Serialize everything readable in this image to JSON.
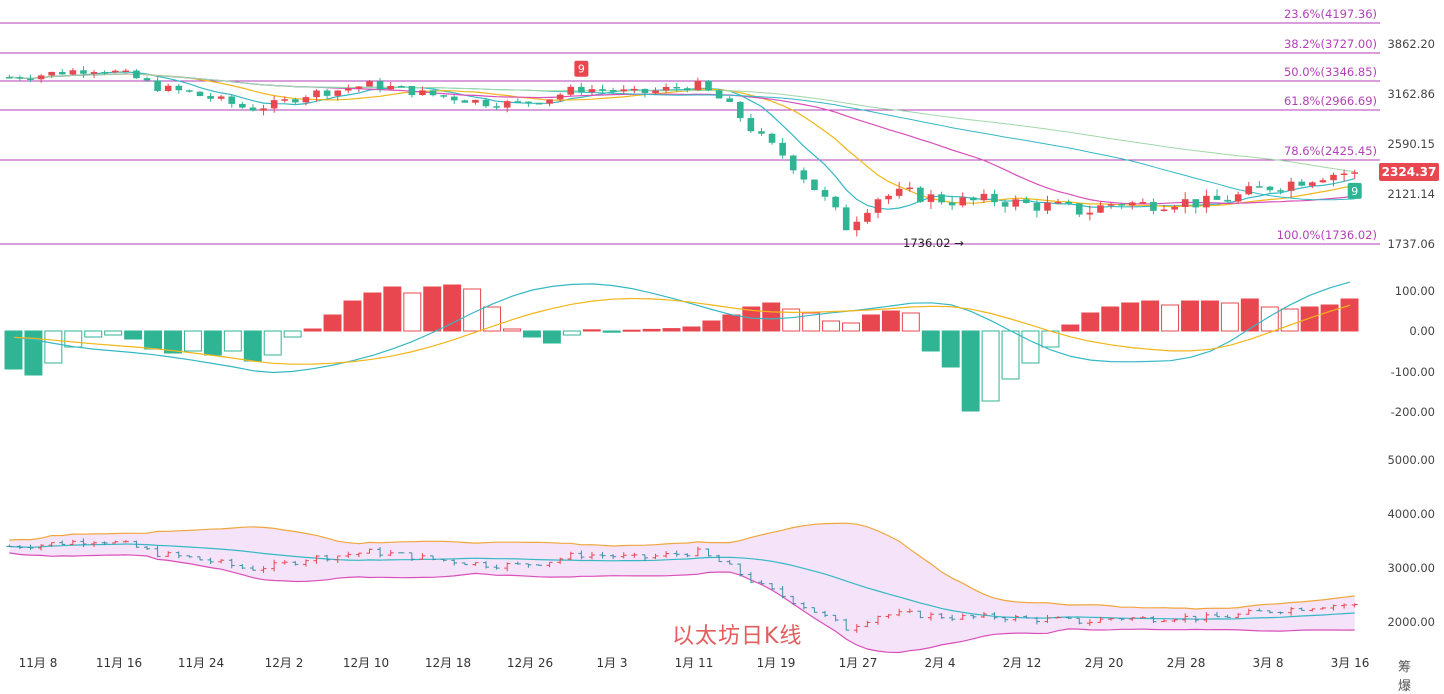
{
  "title": "以太坊日K线",
  "corner_mark": "筹 爆",
  "colors": {
    "up": "#e8474f",
    "down": "#2fb594",
    "fib_line": "#b33fb8",
    "bb_fill": "#f1dcf8",
    "ma_yellow": "#f2b61a",
    "ma_teal": "#35b8c4",
    "ma_magenta": "#d94fb9"
  },
  "chart_data": [
    {
      "type": "candlestick",
      "name": "price",
      "current_price_label": "2324.37",
      "low_marker_label": "1736.02",
      "td_sequential_labels": [
        {
          "date_index": 19,
          "text": "9"
        },
        {
          "date_index": 45,
          "text": "9"
        }
      ],
      "y_ticks": [
        "3862.20",
        "3162.86",
        "2590.15",
        "2121.14",
        "1737.06"
      ],
      "ylim": [
        1700,
        4300
      ],
      "fib_levels": [
        {
          "value": 4197.36,
          "label": "23.6%(4197.36)"
        },
        {
          "value": 3727.0,
          "label": "38.2%(3727.00)"
        },
        {
          "value": 3346.85,
          "label": "50.0%(3346.85)"
        },
        {
          "value": 2966.69,
          "label": "61.8%(2966.69)"
        },
        {
          "value": 2425.45,
          "label": "78.6%(2425.45)"
        },
        {
          "value": 1736.02,
          "label": "100.0%(1736.02)"
        }
      ],
      "x_labels": [
        "11月 8",
        "11月 16",
        "11月 24",
        "12月 2",
        "12月 10",
        "12月 18",
        "12月 26",
        "1月 3",
        "1月 11",
        "1月 19",
        "1月 27",
        "2月 4",
        "2月 12",
        "2月 20",
        "2月 28",
        "3月 8",
        "3月 16"
      ],
      "closes": [
        3400,
        3430,
        3480,
        3520,
        3420,
        3260,
        3190,
        3100,
        2980,
        3050,
        3180,
        3230,
        3300,
        3250,
        3170,
        3120,
        3060,
        3050,
        3120,
        3250,
        3230,
        3180,
        3240,
        3300,
        3050,
        2700,
        2450,
        2180,
        1880,
        2120,
        2150,
        2110,
        2080,
        2100,
        2060,
        2040,
        2000,
        2080,
        2060,
        2090,
        2070,
        2120,
        2200,
        2250,
        2310,
        2324.37
      ]
    },
    {
      "type": "bar",
      "name": "macd_histogram",
      "y_ticks": [
        "100.00",
        "0.00",
        "-100.00",
        "-200.00"
      ],
      "ylim": [
        -230,
        130
      ],
      "values": [
        -95,
        -110,
        -80,
        -40,
        -15,
        -10,
        -20,
        -45,
        -55,
        -50,
        -60,
        -50,
        -75,
        -60,
        -15,
        5,
        40,
        75,
        95,
        110,
        95,
        110,
        115,
        105,
        60,
        5,
        -15,
        -30,
        -10,
        3,
        -3,
        2,
        4,
        6,
        10,
        25,
        40,
        60,
        70,
        55,
        45,
        25,
        20,
        40,
        50,
        45,
        -50,
        -90,
        -200,
        -175,
        -120,
        -80,
        -40,
        15,
        45,
        60,
        70,
        75,
        65,
        75,
        75,
        70,
        80,
        60,
        55,
        60,
        65,
        80
      ]
    },
    {
      "type": "line",
      "name": "bollinger",
      "y_ticks": [
        "5000.00",
        "4000.00",
        "3000.00",
        "2000.00"
      ],
      "ylim": [
        1700,
        5200
      ]
    }
  ]
}
